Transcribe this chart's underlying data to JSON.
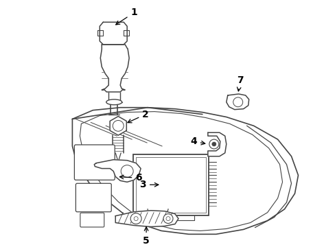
{
  "background_color": "#ffffff",
  "line_color": "#444444",
  "fig_width": 4.89,
  "fig_height": 3.6,
  "dpi": 100
}
